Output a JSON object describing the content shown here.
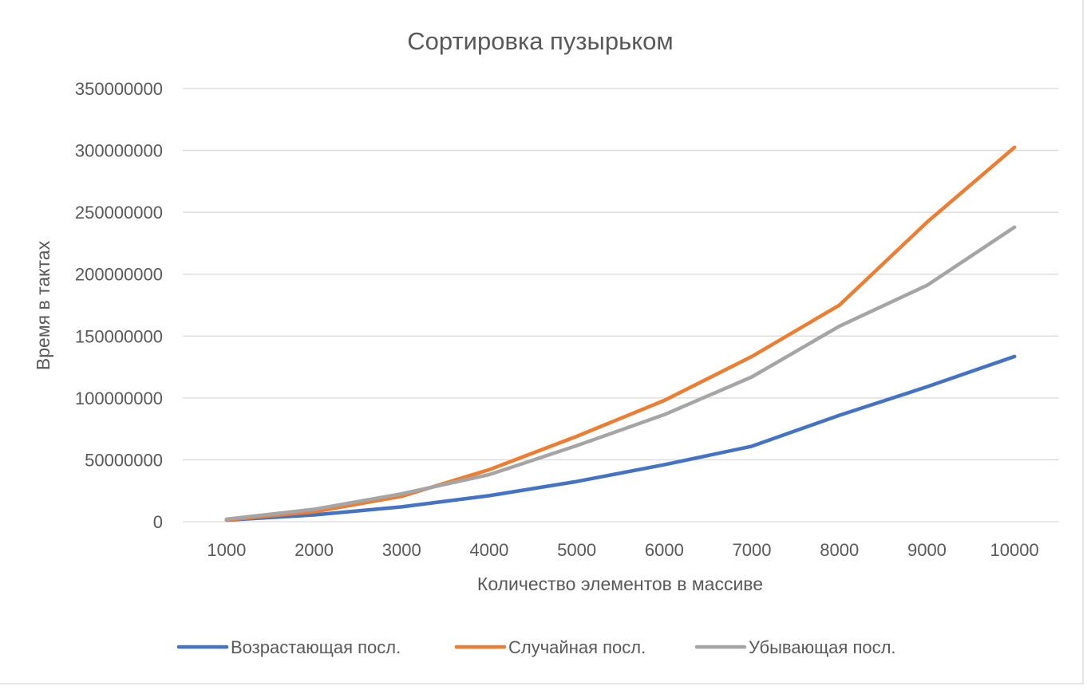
{
  "chart_data": {
    "type": "line",
    "title": "Сортировка пузырьком",
    "xlabel": "Количество элементов в массиве",
    "ylabel": "Время в тактах",
    "categories": [
      "1000",
      "2000",
      "3000",
      "4000",
      "5000",
      "6000",
      "7000",
      "8000",
      "9000",
      "10000"
    ],
    "ylim": [
      0,
      350000000
    ],
    "yticks": [
      "0",
      "50000000",
      "100000000",
      "150000000",
      "200000000",
      "250000000",
      "300000000",
      "350000000"
    ],
    "ytick_values": [
      0,
      50000000,
      100000000,
      150000000,
      200000000,
      250000000,
      300000000,
      350000000
    ],
    "grid": true,
    "legend_position": "bottom",
    "series": [
      {
        "name": "Возрастающая посл.",
        "color": "#4472c4",
        "values": [
          1300000,
          5500000,
          12000000,
          21000000,
          32500000,
          46000000,
          61000000,
          86000000,
          109000000,
          133500000
        ]
      },
      {
        "name": "Случайная посл.",
        "color": "#ed7d31",
        "values": [
          1500000,
          8000000,
          20500000,
          42000000,
          69000000,
          98000000,
          133500000,
          175000000,
          242000000,
          302500000
        ]
      },
      {
        "name": "Убывающая посл.",
        "color": "#a5a5a5",
        "values": [
          2000000,
          10000000,
          22500000,
          38000000,
          61500000,
          86500000,
          117000000,
          158000000,
          191000000,
          238000000
        ]
      }
    ]
  }
}
